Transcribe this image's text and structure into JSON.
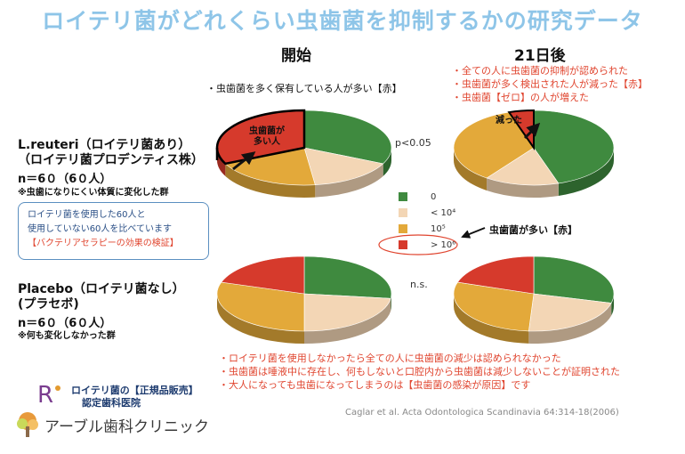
{
  "title": "ロイテリ菌がどれくらい虫歯菌を抑制するかの研究データ",
  "columns": {
    "start": "開始",
    "day21": "21日後"
  },
  "notes": {
    "start_top": "・虫歯菌を多く保有している人が多い【赤】",
    "day21_top": [
      "・全ての人に虫歯菌の抑制が認められた",
      "・虫歯菌が多く検出された人が減った【赤】",
      "・虫歯菌【ゼロ】の人が増えた"
    ],
    "legend_arrow": "虫歯菌が多い【赤】"
  },
  "pie_labels": {
    "many": "虫歯菌が\n多い人",
    "decreased": "減った"
  },
  "groups": {
    "reuteri": {
      "name1": "L.reuteri（ロイテリ菌あり）",
      "name2": "（ロイテリ菌プロデンティス株）",
      "n": "n＝6０（6０人）",
      "note": "※虫歯になりにくい体質に変化した群"
    },
    "placebo": {
      "name1": "Placebo（ロイテリ菌なし）",
      "name2": "(プラセボ)",
      "n": "n＝6０（6０人）",
      "note": "※何も変化しなかった群"
    }
  },
  "callout": {
    "line1": "ロイテリ菌を使用した60人と",
    "line2": "使用していない60人を比べています",
    "line3": "【バクテリアセラピーの効果の検証】"
  },
  "stats": {
    "reuteri": "p<0.05",
    "placebo": "n.s."
  },
  "legend": [
    {
      "label": "0",
      "color": "#3f8a3f"
    },
    {
      "label": "< 10⁴",
      "color": "#f3d6b5"
    },
    {
      "label": "10⁵",
      "color": "#e3a93a"
    },
    {
      "label": "> 10⁶",
      "color": "#d63a2c"
    }
  ],
  "bottom_notes": [
    "・ロイテリ菌を使用しなかったら全ての人に虫歯菌の減少は認められなかった",
    "・虫歯菌は唾液中に存在し、何もしないと口腔内から虫歯菌は減少しないことが証明された",
    "・大人になっても虫歯になってしまうのは【虫歯菌の感染が原因】です"
  ],
  "citation": "Caglar et al. Acta Odontologica Scandinavia 64:314-18(2006)",
  "brand": {
    "line1": "ロイテリ菌の【正規品販売】",
    "line2": "認定歯科医院",
    "clinic": "アーブル歯科クリニック"
  },
  "chart_data": [
    {
      "type": "pie",
      "group": "L.reuteri",
      "time": "開始",
      "categories": [
        "0",
        "< 10⁴",
        "10⁵",
        "> 10⁶"
      ],
      "values": [
        32,
        16,
        20,
        32
      ]
    },
    {
      "type": "pie",
      "group": "L.reuteri",
      "time": "21日後",
      "categories": [
        "0",
        "< 10⁴",
        "10⁵",
        "> 10⁶"
      ],
      "values": [
        45,
        15,
        35,
        5
      ]
    },
    {
      "type": "pie",
      "group": "Placebo",
      "time": "開始",
      "categories": [
        "0",
        "< 10⁴",
        "10⁵",
        "> 10⁶"
      ],
      "values": [
        27,
        23,
        30,
        20
      ]
    },
    {
      "type": "pie",
      "group": "Placebo",
      "time": "21日後",
      "categories": [
        "0",
        "< 10⁴",
        "10⁵",
        "> 10⁶"
      ],
      "values": [
        29,
        22,
        29,
        20
      ]
    }
  ]
}
